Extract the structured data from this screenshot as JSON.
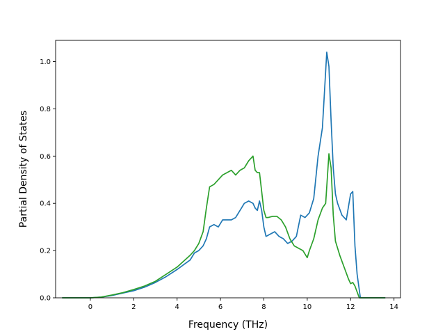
{
  "chart_data": {
    "type": "line",
    "title": "",
    "xlabel": "Frequency (THz)",
    "ylabel": "Partial Density of States",
    "xlim": [
      -1.6,
      14.3
    ],
    "ylim": [
      0,
      1.09
    ],
    "xticks": [
      0,
      2,
      4,
      6,
      8,
      10,
      12,
      14
    ],
    "yticks": [
      0.0,
      0.2,
      0.4,
      0.6,
      0.8,
      1.0
    ],
    "xtick_labels": [
      "0",
      "2",
      "4",
      "6",
      "8",
      "10",
      "12",
      "14"
    ],
    "ytick_labels": [
      "0.0",
      "0.2",
      "0.4",
      "0.6",
      "0.8",
      "1.0"
    ],
    "grid": false,
    "legend": "none",
    "series": [
      {
        "color": "#1f77b4",
        "x": [
          -1.3,
          0.0,
          0.5,
          1.0,
          1.5,
          2.0,
          2.5,
          3.0,
          3.5,
          4.0,
          4.3,
          4.6,
          4.8,
          5.0,
          5.2,
          5.35,
          5.5,
          5.7,
          5.9,
          6.1,
          6.3,
          6.5,
          6.7,
          6.9,
          7.1,
          7.3,
          7.5,
          7.6,
          7.7,
          7.8,
          7.9,
          8.0,
          8.1,
          8.3,
          8.5,
          8.7,
          8.9,
          9.1,
          9.3,
          9.5,
          9.7,
          9.9,
          10.1,
          10.3,
          10.5,
          10.7,
          10.9,
          11.0,
          11.1,
          11.2,
          11.3,
          11.4,
          11.6,
          11.8,
          12.0,
          12.1,
          12.2,
          12.3,
          12.45,
          13.6
        ],
        "y": [
          0.0,
          0.0,
          0.003,
          0.01,
          0.02,
          0.03,
          0.045,
          0.065,
          0.09,
          0.12,
          0.14,
          0.16,
          0.19,
          0.2,
          0.22,
          0.25,
          0.3,
          0.31,
          0.3,
          0.33,
          0.33,
          0.33,
          0.34,
          0.37,
          0.4,
          0.41,
          0.4,
          0.38,
          0.37,
          0.41,
          0.37,
          0.3,
          0.26,
          0.27,
          0.28,
          0.26,
          0.25,
          0.23,
          0.24,
          0.26,
          0.35,
          0.34,
          0.36,
          0.42,
          0.6,
          0.72,
          1.04,
          0.98,
          0.75,
          0.55,
          0.44,
          0.4,
          0.35,
          0.33,
          0.44,
          0.45,
          0.22,
          0.1,
          0.0,
          0.0
        ]
      },
      {
        "color": "#2ca02c",
        "x": [
          -1.3,
          0.0,
          0.5,
          1.0,
          1.5,
          2.0,
          2.5,
          3.0,
          3.5,
          4.0,
          4.3,
          4.6,
          4.8,
          5.0,
          5.2,
          5.35,
          5.5,
          5.7,
          5.9,
          6.1,
          6.3,
          6.5,
          6.7,
          6.9,
          7.1,
          7.3,
          7.5,
          7.6,
          7.7,
          7.8,
          7.9,
          8.0,
          8.1,
          8.2,
          8.4,
          8.6,
          8.8,
          9.0,
          9.2,
          9.4,
          9.6,
          9.8,
          10.0,
          10.1,
          10.3,
          10.5,
          10.7,
          10.85,
          11.0,
          11.1,
          11.2,
          11.3,
          11.5,
          11.7,
          11.9,
          12.0,
          12.1,
          12.2,
          12.4,
          13.6
        ],
        "y": [
          0.0,
          0.0,
          0.003,
          0.012,
          0.022,
          0.035,
          0.05,
          0.07,
          0.1,
          0.13,
          0.155,
          0.18,
          0.2,
          0.23,
          0.28,
          0.38,
          0.47,
          0.48,
          0.5,
          0.52,
          0.53,
          0.54,
          0.52,
          0.54,
          0.55,
          0.58,
          0.6,
          0.54,
          0.53,
          0.53,
          0.45,
          0.37,
          0.34,
          0.34,
          0.345,
          0.345,
          0.33,
          0.3,
          0.25,
          0.22,
          0.21,
          0.2,
          0.17,
          0.2,
          0.25,
          0.33,
          0.38,
          0.4,
          0.61,
          0.55,
          0.35,
          0.24,
          0.18,
          0.13,
          0.08,
          0.06,
          0.065,
          0.05,
          0.0,
          0.0
        ]
      }
    ]
  }
}
